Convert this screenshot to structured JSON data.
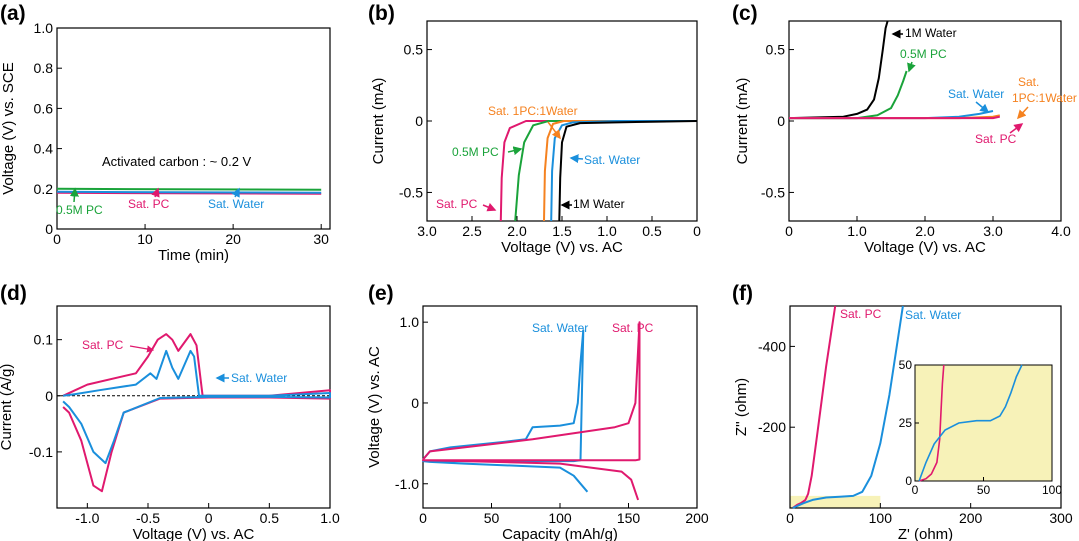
{
  "figure": {
    "panels": [
      {
        "label": "(a)"
      },
      {
        "label": "(b)"
      },
      {
        "label": "(c)"
      },
      {
        "label": "(d)"
      },
      {
        "label": "(e)"
      },
      {
        "label": "(f)"
      }
    ]
  },
  "colors": {
    "black": "#000000",
    "pink": "#e0196e",
    "blue": "#1a8fdc",
    "green": "#1aa33a",
    "orange": "#f58220",
    "inset_bg": "#f7f2b8"
  },
  "chart_data": [
    {
      "type": "line",
      "panel": "(a)",
      "xlabel": "Time (min)",
      "ylabel": "Voltage (V) vs. SCE",
      "xlim": [
        0,
        31
      ],
      "ylim": [
        0,
        1.0
      ],
      "xticks": [
        "0",
        "10",
        "20",
        "30"
      ],
      "yticks": [
        "0",
        "0.2",
        "0.4",
        "0.6",
        "0.8",
        "1.0"
      ],
      "annotations": [
        {
          "text": "Activated carbon : ~ 0.2 V"
        }
      ],
      "series": [
        {
          "name": "0.5M PC",
          "color": "#1aa33a",
          "x": [
            0,
            30
          ],
          "y": [
            0.2,
            0.195
          ]
        },
        {
          "name": "Sat. PC",
          "color": "#e0196e",
          "x": [
            0,
            30
          ],
          "y": [
            0.18,
            0.175
          ]
        },
        {
          "name": "Sat. Water",
          "color": "#1a8fdc",
          "x": [
            0,
            30
          ],
          "y": [
            0.185,
            0.18
          ]
        }
      ]
    },
    {
      "type": "line",
      "panel": "(b)",
      "xlabel": "Voltage (V) vs. AC",
      "ylabel": "Current (mA)",
      "xlim": [
        3.0,
        0
      ],
      "ylim": [
        -0.7,
        0.7
      ],
      "xticks": [
        "3.0",
        "2.5",
        "2.0",
        "1.5",
        "1.0",
        "0.5",
        "0"
      ],
      "yticks": [
        "-0.5",
        "0",
        "0.5"
      ],
      "series": [
        {
          "name": "Sat. PC",
          "color": "#e0196e",
          "x": [
            2.18,
            2.17,
            2.14,
            2.08,
            1.9,
            1.6,
            1.0,
            0.0
          ],
          "y": [
            -0.7,
            -0.4,
            -0.15,
            -0.05,
            0.0,
            0.0,
            0.0,
            0.0
          ]
        },
        {
          "name": "0.5M PC",
          "color": "#1aa33a",
          "x": [
            2.02,
            1.98,
            1.92,
            1.82,
            1.65,
            1.2,
            0.0
          ],
          "y": [
            -0.7,
            -0.38,
            -0.15,
            -0.03,
            0.0,
            0.0,
            0.0
          ]
        },
        {
          "name": "Sat. 1PC:1Water",
          "color": "#f58220",
          "x": [
            1.7,
            1.69,
            1.66,
            1.6,
            1.48,
            1.0,
            0.0
          ],
          "y": [
            -0.7,
            -0.35,
            -0.12,
            -0.02,
            0.0,
            0.0,
            0.0
          ]
        },
        {
          "name": "Sat. Water",
          "color": "#1a8fdc",
          "x": [
            1.62,
            1.61,
            1.58,
            1.5,
            1.38,
            0.9,
            0.0
          ],
          "y": [
            -0.7,
            -0.35,
            -0.12,
            -0.03,
            -0.01,
            0.0,
            0.0
          ]
        },
        {
          "name": "1M Water",
          "color": "#000000",
          "x": [
            1.53,
            1.52,
            1.5,
            1.45,
            1.3,
            0.9,
            0.5,
            0.0
          ],
          "y": [
            -0.7,
            -0.4,
            -0.15,
            -0.04,
            -0.015,
            -0.01,
            -0.005,
            0.0
          ]
        }
      ]
    },
    {
      "type": "line",
      "panel": "(c)",
      "xlabel": "Voltage (V) vs. AC",
      "ylabel": "Current (mA)",
      "xlim": [
        0,
        4.0
      ],
      "ylim": [
        -0.7,
        0.7
      ],
      "xticks": [
        "0",
        "1.0",
        "2.0",
        "3.0",
        "4.0"
      ],
      "yticks": [
        "-0.5",
        "0",
        "0.5"
      ],
      "series": [
        {
          "name": "1M Water",
          "color": "#000000",
          "x": [
            0,
            0.8,
            1.0,
            1.15,
            1.25,
            1.32,
            1.38,
            1.42,
            1.45
          ],
          "y": [
            0.02,
            0.03,
            0.05,
            0.08,
            0.15,
            0.3,
            0.5,
            0.65,
            0.7
          ]
        },
        {
          "name": "0.5M PC",
          "color": "#1aa33a",
          "x": [
            0,
            1.0,
            1.3,
            1.5,
            1.6,
            1.68,
            1.73
          ],
          "y": [
            0.02,
            0.02,
            0.04,
            0.09,
            0.18,
            0.28,
            0.35
          ]
        },
        {
          "name": "Sat. Water",
          "color": "#1a8fdc",
          "x": [
            0,
            2.0,
            2.5,
            2.8,
            3.0
          ],
          "y": [
            0.02,
            0.02,
            0.03,
            0.05,
            0.07
          ]
        },
        {
          "name": "Sat. 1PC:1Water",
          "color": "#f58220",
          "x": [
            0,
            2.5,
            3.0,
            3.1
          ],
          "y": [
            0.02,
            0.02,
            0.03,
            0.04
          ]
        },
        {
          "name": "Sat. PC",
          "color": "#e0196e",
          "x": [
            0,
            2.5,
            3.0,
            3.1
          ],
          "y": [
            0.02,
            0.02,
            0.02,
            0.03
          ]
        }
      ]
    },
    {
      "type": "line",
      "panel": "(d)",
      "xlabel": "Voltage (V) vs. AC",
      "ylabel": "Current (A/g)",
      "xlim": [
        -1.25,
        1.0
      ],
      "ylim": [
        -0.2,
        0.16
      ],
      "xticks": [
        "-1.0",
        "-0.5",
        "0",
        "0.5",
        "1.0"
      ],
      "yticks": [
        "-0.1",
        "0",
        "0.1"
      ],
      "series": [
        {
          "name": "Sat. PC",
          "color": "#e0196e",
          "x": [
            -1.2,
            -1.1,
            -1.0,
            -0.6,
            -0.5,
            -0.42,
            -0.35,
            -0.3,
            -0.25,
            -0.15,
            -0.1,
            -0.05,
            0.2,
            0.5,
            1.0,
            1.0,
            0.5,
            0.0,
            -0.4,
            -0.7,
            -0.8,
            -0.88,
            -0.95,
            -1.05,
            -1.15,
            -1.2
          ],
          "y": [
            0.0,
            0.01,
            0.02,
            0.04,
            0.07,
            0.1,
            0.11,
            0.1,
            0.08,
            0.11,
            0.09,
            0.0,
            0.0,
            0.0,
            0.01,
            -0.005,
            -0.003,
            -0.003,
            -0.005,
            -0.03,
            -0.1,
            -0.17,
            -0.16,
            -0.08,
            -0.03,
            -0.02
          ]
        },
        {
          "name": "Sat. Water",
          "color": "#1a8fdc",
          "x": [
            -1.2,
            -1.1,
            -0.9,
            -0.6,
            -0.48,
            -0.43,
            -0.35,
            -0.3,
            -0.25,
            -0.15,
            -0.12,
            -0.08,
            0.2,
            0.5,
            1.0,
            1.0,
            0.5,
            0.0,
            -0.4,
            -0.7,
            -0.78,
            -0.85,
            -0.95,
            -1.05,
            -1.15,
            -1.2
          ],
          "y": [
            0.0,
            0.003,
            0.01,
            0.02,
            0.04,
            0.03,
            0.08,
            0.05,
            0.03,
            0.08,
            0.07,
            0.0,
            0.0,
            0.0,
            0.005,
            -0.003,
            -0.002,
            -0.002,
            -0.004,
            -0.03,
            -0.08,
            -0.12,
            -0.1,
            -0.05,
            -0.02,
            -0.01
          ]
        }
      ]
    },
    {
      "type": "line",
      "panel": "(e)",
      "xlabel": "Capacity (mAh/g)",
      "ylabel": "Voltage (V) vs. AC",
      "xlim": [
        0,
        200
      ],
      "ylim": [
        -1.3,
        1.2
      ],
      "xticks": [
        "0",
        "50",
        "100",
        "150",
        "200"
      ],
      "yticks": [
        "-1.0",
        "0",
        "1.0"
      ],
      "series": [
        {
          "name": "Sat. Water",
          "color": "#1a8fdc",
          "x": [
            0,
            5,
            20,
            60,
            75,
            80,
            100,
            110,
            113,
            115,
            117,
            117,
            115,
            110,
            100,
            50,
            10,
            0,
            0,
            5,
            30,
            100,
            110,
            120
          ],
          "y": [
            -0.7,
            -0.6,
            -0.55,
            -0.48,
            -0.45,
            -0.3,
            -0.28,
            -0.25,
            0.0,
            0.5,
            0.9,
            0.9,
            -0.71,
            -0.72,
            -0.72,
            -0.72,
            -0.72,
            -0.72,
            -0.72,
            -0.73,
            -0.75,
            -0.8,
            -0.9,
            -1.1
          ]
        },
        {
          "name": "Sat. PC",
          "color": "#e0196e",
          "x": [
            0,
            5,
            30,
            80,
            140,
            150,
            155,
            158,
            158,
            155,
            150,
            120,
            60,
            10,
            0,
            0,
            30,
            100,
            145,
            152,
            157
          ],
          "y": [
            -0.7,
            -0.6,
            -0.55,
            -0.45,
            -0.3,
            -0.25,
            0.0,
            1.0,
            -0.7,
            -0.71,
            -0.71,
            -0.71,
            -0.71,
            -0.71,
            -0.71,
            -0.71,
            -0.72,
            -0.75,
            -0.85,
            -0.95,
            -1.2
          ]
        }
      ]
    },
    {
      "type": "line",
      "panel": "(f)",
      "xlabel": "Z' (ohm)",
      "ylabel": "Z'' (ohm)",
      "xlim": [
        0,
        300
      ],
      "ylim": [
        0,
        -500
      ],
      "xticks": [
        "0",
        "100",
        "200",
        "300"
      ],
      "yticks": [
        "-200",
        "-400"
      ],
      "series": [
        {
          "name": "Sat. PC",
          "color": "#e0196e",
          "x": [
            3,
            8,
            12,
            17,
            20,
            24,
            30,
            40,
            50
          ],
          "y": [
            0,
            -8,
            -12,
            -20,
            -35,
            -80,
            -180,
            -350,
            -500
          ]
        },
        {
          "name": "Sat. Water",
          "color": "#1a8fdc",
          "x": [
            3,
            15,
            25,
            40,
            55,
            70,
            80,
            90,
            100,
            110,
            125
          ],
          "y": [
            0,
            -12,
            -20,
            -26,
            -28,
            -30,
            -40,
            -80,
            -160,
            -280,
            -500
          ]
        }
      ],
      "inset": {
        "xlim": [
          0,
          100
        ],
        "ylim": [
          0,
          50
        ],
        "xticks": [
          "0",
          "50",
          "100"
        ],
        "yticks": [
          "0",
          "25",
          "50"
        ],
        "series": [
          {
            "name": "Sat. PC",
            "color": "#e0196e",
            "x": [
              3,
              8,
              12,
              16,
              18,
              19,
              20,
              21
            ],
            "y": [
              0,
              1,
              3,
              8,
              18,
              30,
              42,
              50
            ]
          },
          {
            "name": "Sat. Water",
            "color": "#1a8fdc",
            "x": [
              3,
              8,
              14,
              22,
              32,
              45,
              55,
              62,
              66,
              70,
              74,
              78
            ],
            "y": [
              0,
              8,
              16,
              22,
              25,
              26,
              26,
              28,
              32,
              38,
              45,
              50
            ]
          }
        ]
      }
    }
  ],
  "labels": {
    "a_activated": "Activated carbon : ~ 0.2 V",
    "a_05m_pc": "0.5M PC",
    "a_sat_pc": "Sat. PC",
    "a_sat_water": "Sat. Water",
    "b_sat_1pc": "Sat. 1PC:1Water",
    "b_05m_pc": "0.5M PC",
    "b_sat_water": "Sat. Water",
    "b_sat_pc": "Sat. PC",
    "b_1m_water": "1M Water",
    "c_1m_water": "1M Water",
    "c_05m_pc": "0.5M PC",
    "c_sat_water": "Sat. Water",
    "c_sat": "Sat.",
    "c_1pc": "1PC:1Water",
    "c_sat_pc": "Sat. PC",
    "d_sat_pc": "Sat. PC",
    "d_sat_water": "Sat. Water",
    "e_sat_water": "Sat. Water",
    "e_sat_pc": "Sat. PC",
    "f_sat_pc": "Sat. PC",
    "f_sat_water": "Sat. Water"
  }
}
